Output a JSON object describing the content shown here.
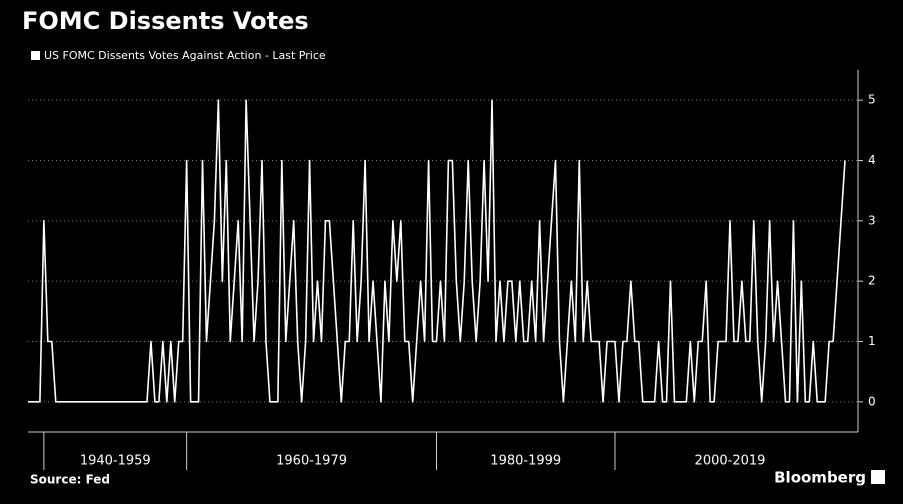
{
  "chart_data": {
    "type": "line",
    "title": "FOMC Dissents Votes",
    "legend": "US FOMC Dissents Votes Against Action - Last Price",
    "source": "Source: Fed",
    "brand": "Bloomberg",
    "series": [
      {
        "name": "US FOMC Dissents Votes Against Action - Last Price",
        "color": "#ffffff",
        "values": [
          0,
          0,
          0,
          0,
          3,
          1,
          1,
          0,
          0,
          0,
          0,
          0,
          0,
          0,
          0,
          0,
          0,
          0,
          0,
          0,
          0,
          0,
          0,
          0,
          0,
          0,
          0,
          0,
          0,
          0,
          0,
          1,
          0,
          0,
          1,
          0,
          1,
          0,
          1,
          1,
          4,
          0,
          0,
          0,
          4,
          1,
          2,
          3,
          5,
          2,
          4,
          1,
          2,
          3,
          1,
          5,
          3,
          1,
          2,
          4,
          1,
          0,
          0,
          0,
          4,
          1,
          2,
          3,
          1,
          0,
          1,
          4,
          1,
          2,
          1,
          3,
          3,
          2,
          1,
          0,
          1,
          1,
          3,
          1,
          2,
          4,
          1,
          2,
          1,
          0,
          2,
          1,
          3,
          2,
          3,
          1,
          1,
          0,
          1,
          2,
          1,
          4,
          1,
          1,
          2,
          1,
          4,
          4,
          2,
          1,
          2,
          4,
          2,
          1,
          2,
          4,
          2,
          5,
          1,
          2,
          1,
          2,
          2,
          1,
          2,
          1,
          1,
          2,
          1,
          3,
          1,
          2,
          3,
          4,
          1,
          0,
          1,
          2,
          1,
          4,
          1,
          2,
          1,
          1,
          1,
          0,
          1,
          1,
          1,
          0,
          1,
          1,
          2,
          1,
          1,
          0,
          0,
          0,
          0,
          1,
          0,
          0,
          2,
          0,
          0,
          0,
          0,
          1,
          0,
          1,
          1,
          2,
          0,
          0,
          1,
          1,
          1,
          3,
          1,
          1,
          2,
          1,
          1,
          3,
          1,
          0,
          1,
          3,
          1,
          2,
          1,
          0,
          0,
          3,
          0,
          2,
          0,
          0,
          1,
          0,
          0,
          0,
          1,
          1,
          2,
          3,
          4
        ]
      }
    ],
    "periods": [
      "1940-1959",
      "1960-1979",
      "1980-1999",
      "2000-2019"
    ],
    "period_bounds": [
      4,
      40,
      103,
      148
    ],
    "ylim": [
      -0.5,
      5.5
    ],
    "yticks": [
      0,
      1,
      2,
      3,
      4,
      5
    ],
    "grid": true
  }
}
